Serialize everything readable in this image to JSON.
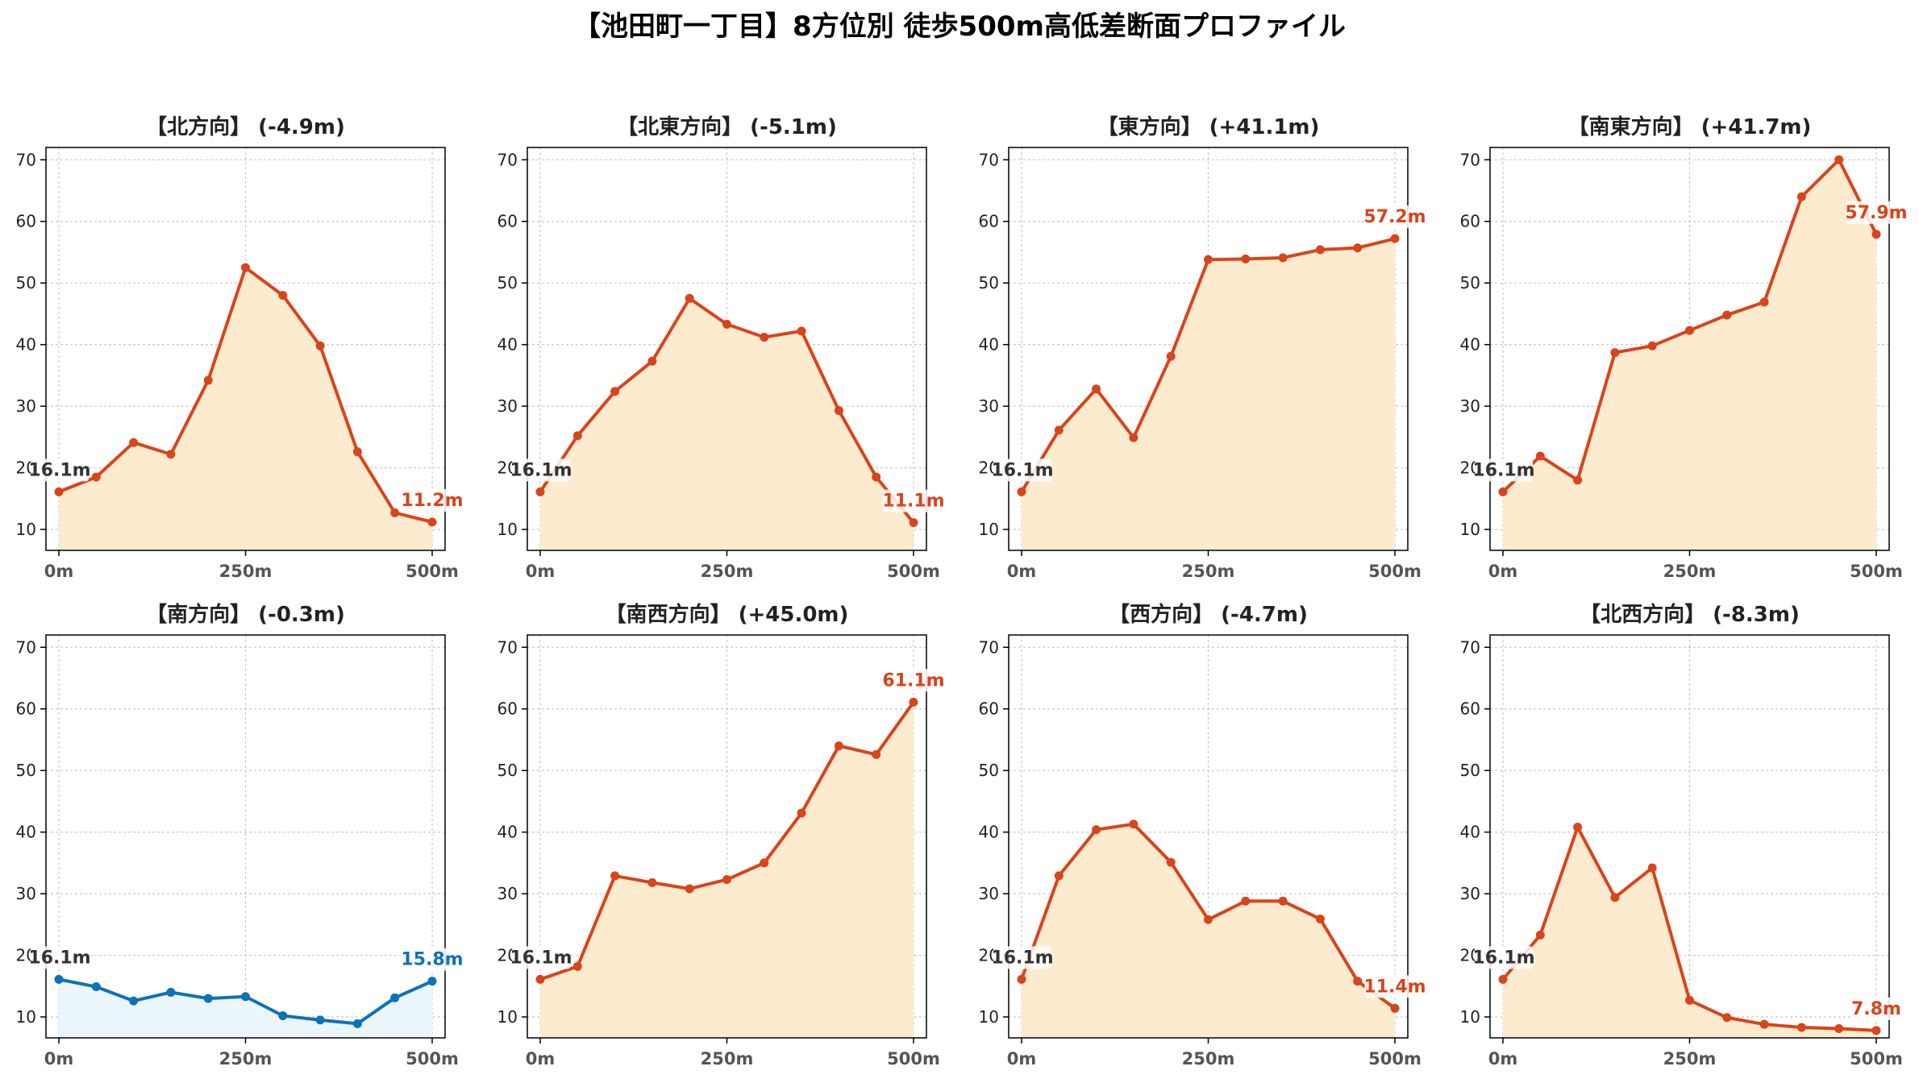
{
  "title": "【池田町一丁目】8方位別 徒歩500m高低差断面プロファイル",
  "colors": {
    "up_line": "#d9441a",
    "up_fill": "#fdebd0",
    "down_line": "#0e72b8",
    "down_fill": "#eaf6fc",
    "start_label": "#333333",
    "grid": "#c8c8c8",
    "axis": "#000000",
    "tick_text": "#555555"
  },
  "chart_data": [
    {
      "type": "area",
      "title": "【北方向】 (-4.9m)",
      "x": [
        0,
        50,
        100,
        150,
        200,
        250,
        300,
        350,
        400,
        450,
        500
      ],
      "values": [
        16.1,
        18.5,
        24.1,
        22.2,
        34.2,
        52.5,
        48.0,
        39.8,
        22.6,
        12.7,
        11.2
      ],
      "start_label": "16.1m",
      "end_label": "11.2m",
      "trend": "up",
      "xticks": [
        "0m",
        "250m",
        "500m"
      ],
      "yticks": [
        10,
        20,
        30,
        40,
        50,
        60,
        70
      ],
      "xlim": [
        0,
        500
      ],
      "ylim": [
        6.6,
        72
      ],
      "grid": true
    },
    {
      "type": "area",
      "title": "【北東方向】 (-5.1m)",
      "x": [
        0,
        50,
        100,
        150,
        200,
        250,
        300,
        350,
        400,
        450,
        500
      ],
      "values": [
        16.1,
        25.2,
        32.4,
        37.3,
        47.5,
        43.3,
        41.2,
        42.2,
        29.3,
        18.5,
        11.1
      ],
      "start_label": "16.1m",
      "end_label": "11.1m",
      "trend": "up",
      "xticks": [
        "0m",
        "250m",
        "500m"
      ],
      "yticks": [
        10,
        20,
        30,
        40,
        50,
        60,
        70
      ],
      "xlim": [
        0,
        500
      ],
      "ylim": [
        6.6,
        72
      ],
      "grid": true
    },
    {
      "type": "area",
      "title": "【東方向】 (+41.1m)",
      "x": [
        0,
        50,
        100,
        150,
        200,
        250,
        300,
        350,
        400,
        450,
        500
      ],
      "values": [
        16.1,
        26.1,
        32.8,
        24.9,
        38.1,
        53.8,
        53.9,
        54.1,
        55.4,
        55.7,
        57.2
      ],
      "start_label": "16.1m",
      "end_label": "57.2m",
      "trend": "up",
      "xticks": [
        "0m",
        "250m",
        "500m"
      ],
      "yticks": [
        10,
        20,
        30,
        40,
        50,
        60,
        70
      ],
      "xlim": [
        0,
        500
      ],
      "ylim": [
        6.6,
        72
      ],
      "grid": true
    },
    {
      "type": "area",
      "title": "【南東方向】 (+41.7m)",
      "x": [
        0,
        50,
        100,
        150,
        200,
        250,
        300,
        350,
        400,
        450,
        500
      ],
      "values": [
        16.1,
        21.9,
        18.0,
        38.7,
        39.8,
        42.3,
        44.8,
        46.9,
        64.0,
        70.0,
        57.9
      ],
      "start_label": "16.1m",
      "end_label": "57.9m",
      "trend": "up",
      "xticks": [
        "0m",
        "250m",
        "500m"
      ],
      "yticks": [
        10,
        20,
        30,
        40,
        50,
        60,
        70
      ],
      "xlim": [
        0,
        500
      ],
      "ylim": [
        6.6,
        72
      ],
      "grid": true
    },
    {
      "type": "area",
      "title": "【南方向】 (-0.3m)",
      "x": [
        0,
        50,
        100,
        150,
        200,
        250,
        300,
        350,
        400,
        450,
        500
      ],
      "values": [
        16.1,
        14.9,
        12.6,
        14.0,
        13.0,
        13.3,
        10.2,
        9.5,
        8.9,
        13.1,
        15.8
      ],
      "start_label": "16.1m",
      "end_label": "15.8m",
      "trend": "down",
      "xticks": [
        "0m",
        "250m",
        "500m"
      ],
      "yticks": [
        10,
        20,
        30,
        40,
        50,
        60,
        70
      ],
      "xlim": [
        0,
        500
      ],
      "ylim": [
        6.6,
        72
      ],
      "grid": true
    },
    {
      "type": "area",
      "title": "【南西方向】 (+45.0m)",
      "x": [
        0,
        50,
        100,
        150,
        200,
        250,
        300,
        350,
        400,
        450,
        500
      ],
      "values": [
        16.1,
        18.2,
        32.9,
        31.8,
        30.8,
        32.3,
        35.0,
        43.1,
        54.0,
        52.6,
        61.1
      ],
      "start_label": "16.1m",
      "end_label": "61.1m",
      "trend": "up",
      "xticks": [
        "0m",
        "250m",
        "500m"
      ],
      "yticks": [
        10,
        20,
        30,
        40,
        50,
        60,
        70
      ],
      "xlim": [
        0,
        500
      ],
      "ylim": [
        6.6,
        72
      ],
      "grid": true
    },
    {
      "type": "area",
      "title": "【西方向】 (-4.7m)",
      "x": [
        0,
        50,
        100,
        150,
        200,
        250,
        300,
        350,
        400,
        450,
        500
      ],
      "values": [
        16.1,
        32.9,
        40.4,
        41.3,
        35.1,
        25.8,
        28.8,
        28.8,
        25.9,
        15.8,
        11.4
      ],
      "start_label": "16.1m",
      "end_label": "11.4m",
      "trend": "up",
      "xticks": [
        "0m",
        "250m",
        "500m"
      ],
      "yticks": [
        10,
        20,
        30,
        40,
        50,
        60,
        70
      ],
      "xlim": [
        0,
        500
      ],
      "ylim": [
        6.6,
        72
      ],
      "grid": true
    },
    {
      "type": "area",
      "title": "【北西方向】 (-8.3m)",
      "x": [
        0,
        50,
        100,
        150,
        200,
        250,
        300,
        350,
        400,
        450,
        500
      ],
      "values": [
        16.1,
        23.3,
        40.8,
        29.4,
        34.2,
        12.7,
        9.9,
        8.8,
        8.3,
        8.1,
        7.8
      ],
      "start_label": "16.1m",
      "end_label": "7.8m",
      "trend": "up",
      "xticks": [
        "0m",
        "250m",
        "500m"
      ],
      "yticks": [
        10,
        20,
        30,
        40,
        50,
        60,
        70
      ],
      "xlim": [
        0,
        500
      ],
      "ylim": [
        6.6,
        72
      ],
      "grid": true
    }
  ]
}
